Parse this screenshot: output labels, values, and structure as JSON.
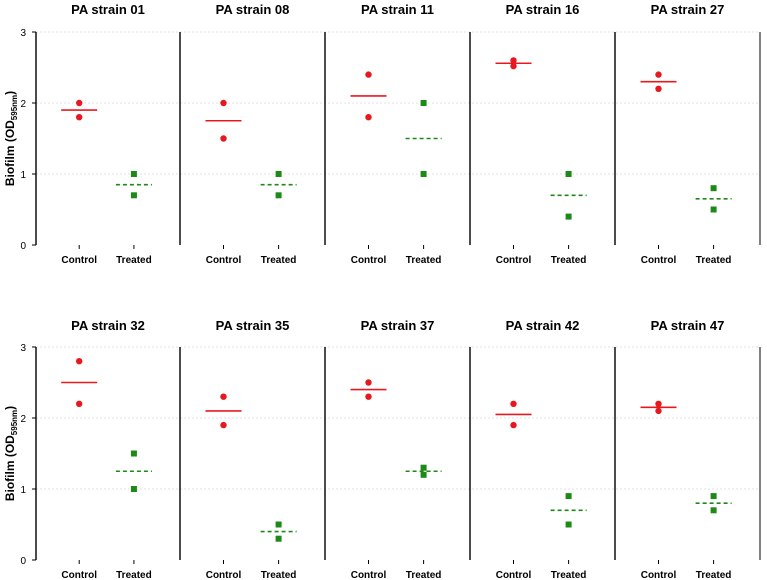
{
  "chart_data": {
    "type": "scatter",
    "ylabel": "Biofilm (OD595nm)",
    "ylabel_main": "Biofilm (OD",
    "ylabel_sub": "595nm",
    "ylabel_end": ")",
    "ylim": [
      0,
      3
    ],
    "yticks": [
      "0",
      "1",
      "2",
      "3"
    ],
    "categories": [
      "Control",
      "Treated"
    ],
    "colors": {
      "control": "#e8191e",
      "treated": "#1d8a17",
      "axis": "#000000",
      "grid": "#d9d9d9"
    },
    "panels": [
      {
        "title": "PA strain 01",
        "control": [
          2.0,
          1.8
        ],
        "control_mean": 1.9,
        "treated": [
          1.0,
          0.7
        ],
        "treated_mean": 0.85
      },
      {
        "title": "PA strain 08",
        "control": [
          2.0,
          1.5
        ],
        "control_mean": 1.75,
        "treated": [
          1.0,
          0.7
        ],
        "treated_mean": 0.85
      },
      {
        "title": "PA strain 11",
        "control": [
          2.4,
          1.8
        ],
        "control_mean": 2.1,
        "treated": [
          2.0,
          1.0
        ],
        "treated_mean": 1.5
      },
      {
        "title": "PA strain 16",
        "control": [
          2.6,
          2.52
        ],
        "control_mean": 2.56,
        "treated": [
          1.0,
          0.4
        ],
        "treated_mean": 0.7
      },
      {
        "title": "PA strain 27",
        "control": [
          2.4,
          2.2
        ],
        "control_mean": 2.3,
        "treated": [
          0.8,
          0.5
        ],
        "treated_mean": 0.65
      },
      {
        "title": "PA strain 32",
        "control": [
          2.8,
          2.2
        ],
        "control_mean": 2.5,
        "treated": [
          1.5,
          1.0
        ],
        "treated_mean": 1.25
      },
      {
        "title": "PA strain 35",
        "control": [
          2.3,
          1.9
        ],
        "control_mean": 2.1,
        "treated": [
          0.5,
          0.3
        ],
        "treated_mean": 0.4
      },
      {
        "title": "PA strain 37",
        "control": [
          2.5,
          2.3
        ],
        "control_mean": 2.4,
        "treated": [
          1.3,
          1.2
        ],
        "treated_mean": 1.25
      },
      {
        "title": "PA strain 42",
        "control": [
          2.2,
          1.9
        ],
        "control_mean": 2.05,
        "treated": [
          0.9,
          0.5
        ],
        "treated_mean": 0.7
      },
      {
        "title": "PA strain 47",
        "control": [
          2.2,
          2.1
        ],
        "control_mean": 2.15,
        "treated": [
          0.9,
          0.7
        ],
        "treated_mean": 0.8
      }
    ]
  }
}
